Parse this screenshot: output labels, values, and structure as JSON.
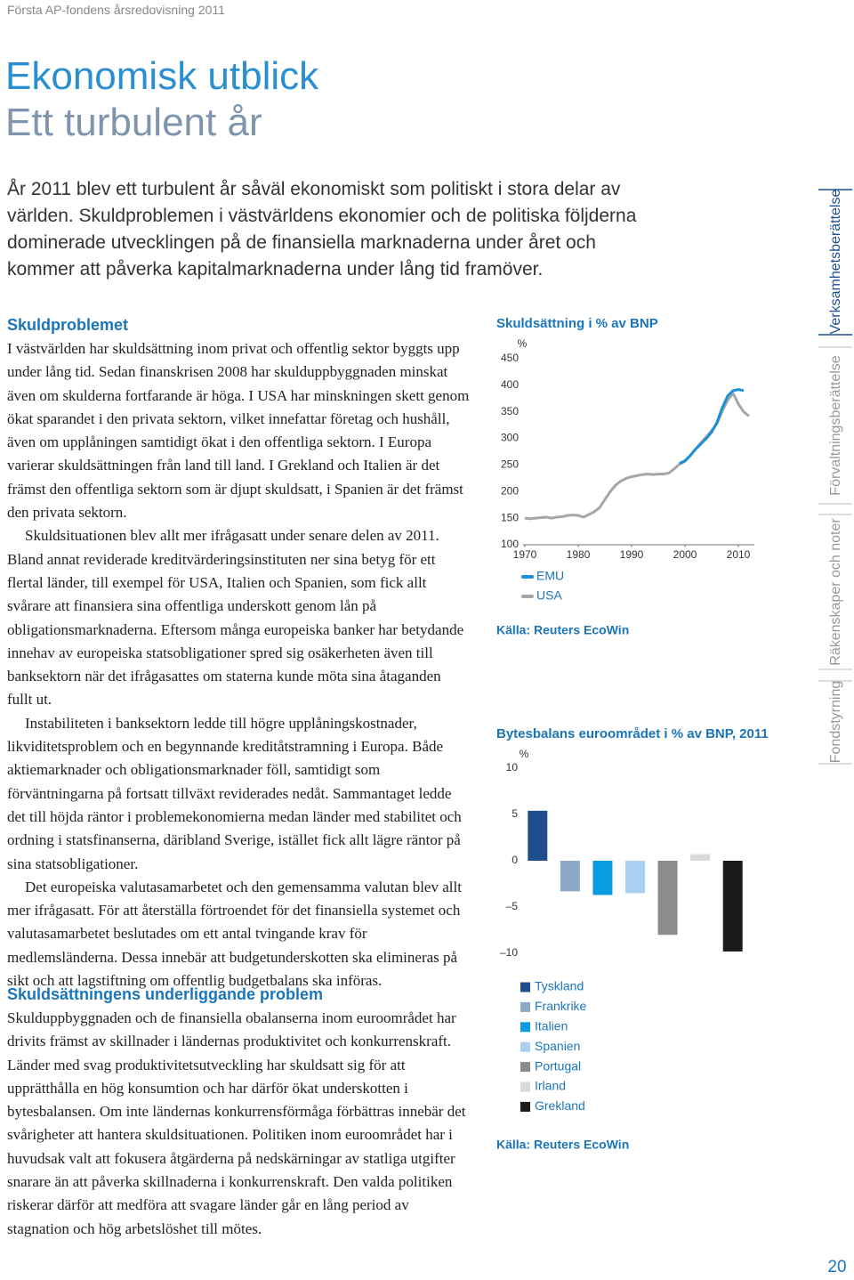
{
  "header": {
    "publication": "Första AP-fondens årsredovisning 2011",
    "page_number": 20
  },
  "title": "Ekonomisk utblick",
  "subtitle": "Ett turbulent år",
  "lead": "År 2011 blev ett turbulent år såväl ekonomiskt som politiskt i stora delar av världen. Skuldproblemen i västvärldens ekonomier och de politiska följderna dominerade utvecklingen på de finansiella marknaderna under året och kommer att påverka kapitalmarknaderna under lång tid framöver.",
  "sections": [
    {
      "heading": "Skuldproblemet",
      "paragraphs": [
        "I västvärlden har skuldsättning inom privat och offentlig sektor byggts upp under lång tid. Sedan finanskrisen 2008 har skulduppbyggnaden minskat även om skulderna fortfarande är höga. I USA har minskningen skett genom ökat sparandet i den privata sektorn, vilket innefattar företag och hushåll, även om upplåningen samtidigt ökat i den offentliga sektorn. I Europa varierar skuldsättningen från land till land. I Grekland och Italien är det främst den offentliga sektorn som är djupt skuldsatt, i Spanien är det främst den privata sektorn.",
        "Skuldsituationen blev allt mer ifrågasatt under senare delen av 2011. Bland annat reviderade kreditvärderingsinstituten ner sina betyg för ett flertal länder, till exempel för USA, Italien och Spanien, som fick allt svårare att finansiera sina offentliga underskott genom lån på obligationsmarknaderna. Eftersom många europeiska banker har betydande innehav av europeiska statsobligationer spred sig osäkerheten även till banksektorn när det ifrågasattes om staterna kunde möta sina åtaganden fullt ut.",
        "Instabiliteten i banksektorn ledde till högre upplåningskostnader, likviditetsproblem och en begynnande kreditåtstramning i Europa. Både aktiemarknader och obligationsmarknader föll, samtidigt som förväntningarna på fortsatt tillväxt reviderades nedåt. Sammantaget ledde det till höjda räntor i problemekonomierna medan länder med stabilitet och ordning i statsfinanserna, däribland Sverige, istället fick allt lägre räntor på sina statsobligationer.",
        "Det europeiska valutasamarbetet och den gemensamma valutan blev allt mer ifrågasatt. För att återställa förtroendet för det finansiella systemet och valutasamarbetet beslutades om ett antal tvingande krav för medlemsländerna. Dessa innebär att budgetunderskotten ska elimineras på sikt och att lagstiftning om offentlig budgetbalans ska införas."
      ]
    },
    {
      "heading": "Skuldsättningens underliggande problem",
      "paragraphs": [
        "Skulduppbyggnaden och de finansiella obalanserna inom euroområdet har drivits främst av skillnader i ländernas produktivitet och konkurrenskraft. Länder med svag produktivitetsutveckling har skuldsatt sig för att upprätthålla en hög konsumtion och har därför ökat underskotten i bytesbalansen. Om inte ländernas konkurrensförmåga förbättras innebär det svårigheter att hantera skuldsituationen. Politiken inom euroområdet har i huvudsak valt att fokusera åtgärderna på nedskärningar av statliga utgifter snarare än att påverka skillnaderna i konkurrenskraft. Den valda politiken riskerar därför att medföra att svagare länder går en lång period av stagnation och hög arbetslöshet till mötes."
      ]
    }
  ],
  "navigation": {
    "tabs": [
      "Verksamhetsberättelse",
      "Förvaltningsberättelse",
      "Räkenskaper och noter",
      "Fondstyrning"
    ]
  },
  "chart_data": [
    {
      "type": "line",
      "title": "Skuldsättning i % av BNP",
      "y_unit": "%",
      "x": [
        1970,
        1971,
        1972,
        1973,
        1974,
        1975,
        1976,
        1977,
        1978,
        1979,
        1980,
        1981,
        1982,
        1983,
        1984,
        1985,
        1986,
        1987,
        1988,
        1989,
        1990,
        1991,
        1992,
        1993,
        1994,
        1995,
        1996,
        1997,
        1998,
        1999,
        2000,
        2001,
        2002,
        2003,
        2004,
        2005,
        2006,
        2007,
        2008,
        2009,
        2010,
        2011,
        2012
      ],
      "series": [
        {
          "name": "EMU",
          "color": "#1b8fd8",
          "values": [
            null,
            null,
            null,
            null,
            null,
            null,
            null,
            null,
            null,
            null,
            null,
            null,
            null,
            null,
            null,
            null,
            null,
            null,
            null,
            null,
            null,
            null,
            null,
            null,
            null,
            null,
            null,
            null,
            null,
            253,
            258,
            268,
            280,
            290,
            300,
            312,
            330,
            358,
            380,
            390,
            392,
            390,
            null
          ]
        },
        {
          "name": "USA",
          "color": "#a6a6a6",
          "values": [
            150,
            149,
            150,
            151,
            152,
            150,
            152,
            153,
            155,
            156,
            155,
            152,
            157,
            162,
            170,
            185,
            200,
            212,
            220,
            225,
            228,
            230,
            232,
            233,
            232,
            233,
            233,
            235,
            243,
            252,
            257,
            268,
            280,
            292,
            303,
            315,
            328,
            352,
            372,
            385,
            365,
            350,
            342
          ]
        }
      ],
      "xlim": [
        1970,
        2013
      ],
      "ylim": [
        100,
        450
      ],
      "xticks": [
        1970,
        1980,
        1990,
        2000,
        2010
      ],
      "yticks": [
        100,
        150,
        200,
        250,
        300,
        350,
        400,
        450
      ],
      "source": "Källa: Reuters EcoWin"
    },
    {
      "type": "bar",
      "title": "Bytesbalans euroområdet i % av BNP, 2011",
      "y_unit": "%",
      "categories": [
        "Tyskland",
        "Frankrike",
        "Italien",
        "Spanien",
        "Portugal",
        "Irland",
        "Grekland"
      ],
      "values": [
        5.4,
        -3.3,
        -3.7,
        -3.5,
        -8,
        0.7,
        -9.8
      ],
      "colors": [
        "#1f4e8c",
        "#8ea9c8",
        "#0b9be0",
        "#a9d0f0",
        "#8c8c8c",
        "#d9d9d9",
        "#1a1a1a"
      ],
      "ylim": [
        -10,
        10
      ],
      "yticks": [
        {
          "value": -10,
          "label": "–10"
        },
        {
          "value": -5,
          "label": "–5"
        },
        0,
        5,
        10
      ],
      "source": "Källa: Reuters EcoWin"
    }
  ]
}
